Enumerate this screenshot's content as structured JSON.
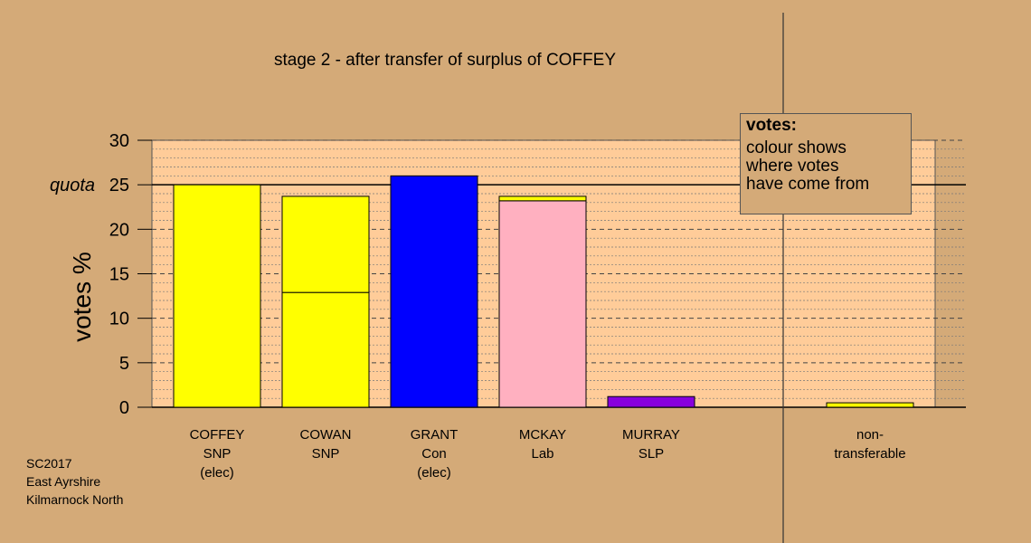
{
  "footnote": [
    "SC2017",
    "East Ayrshire",
    "Kilmarnock North"
  ],
  "legend": {
    "title": "votes:",
    "lines": [
      "colour shows",
      "where votes",
      "have come from"
    ]
  },
  "chart_data": {
    "type": "bar",
    "stacked": true,
    "title": "stage 2 - after transfer of surplus of COFFEY",
    "ylabel": "votes %",
    "ylim": [
      0,
      30
    ],
    "yticks": [
      0,
      5,
      10,
      15,
      20,
      25,
      30
    ],
    "quota": 25,
    "quota_label": "quota",
    "categories": [
      {
        "label": [
          "COFFEY",
          "SNP",
          "(elec)"
        ],
        "segments": [
          {
            "value": 25.0,
            "color": "#FFFF00"
          }
        ]
      },
      {
        "label": [
          "COWAN",
          "SNP"
        ],
        "segments": [
          {
            "value": 12.9,
            "color": "#FFFF00"
          },
          {
            "value": 10.8,
            "color": "#FFFF00"
          }
        ]
      },
      {
        "label": [
          "GRANT",
          "Con",
          "(elec)"
        ],
        "segments": [
          {
            "value": 26.0,
            "color": "#0000FF"
          }
        ]
      },
      {
        "label": [
          "MCKAY",
          "Lab"
        ],
        "segments": [
          {
            "value": 23.2,
            "color": "#FFB0C0"
          },
          {
            "value": 0.5,
            "color": "#FFFF00"
          }
        ]
      },
      {
        "label": [
          "MURRAY",
          "SLP"
        ],
        "segments": [
          {
            "value": 1.2,
            "color": "#8800DD"
          }
        ]
      }
    ],
    "nontransferable": {
      "label": [
        "non-",
        "transferable"
      ],
      "segments": [
        {
          "value": 0.5,
          "color": "#FFFF00"
        }
      ]
    },
    "colors": {
      "background": "#D4AA78",
      "plot_area": "#FFCC99"
    }
  }
}
